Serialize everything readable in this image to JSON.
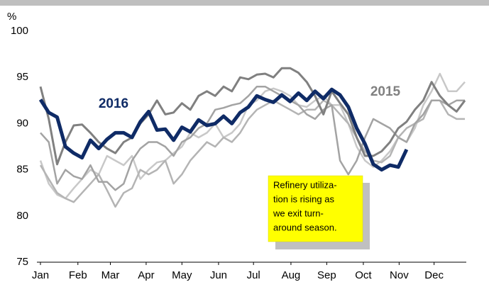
{
  "chart_data": {
    "type": "line",
    "y_unit": "%",
    "x": [
      1,
      2,
      3,
      4,
      5,
      6,
      7,
      8,
      9,
      10,
      11,
      12,
      13,
      14,
      15,
      16,
      17,
      18,
      19,
      20,
      21,
      22,
      23,
      24,
      25,
      26,
      27,
      28,
      29,
      30,
      31,
      32,
      33,
      34,
      35,
      36,
      37,
      38,
      39,
      40,
      41,
      42,
      43,
      44,
      45,
      46,
      47,
      48,
      49,
      50,
      51,
      52
    ],
    "xlim": [
      1,
      52
    ],
    "xticks": [
      {
        "value": 1,
        "label": "Jan"
      },
      {
        "value": 5.5,
        "label": "Feb"
      },
      {
        "value": 9.4,
        "label": "Mar"
      },
      {
        "value": 13.7,
        "label": "Apr"
      },
      {
        "value": 18.0,
        "label": "May"
      },
      {
        "value": 22.4,
        "label": "Jun"
      },
      {
        "value": 26.6,
        "label": "Jul"
      },
      {
        "value": 31.1,
        "label": "Aug"
      },
      {
        "value": 35.4,
        "label": "Sep"
      },
      {
        "value": 39.8,
        "label": "Oct"
      },
      {
        "value": 44.1,
        "label": "Nov"
      },
      {
        "value": 48.3,
        "label": "Dec"
      }
    ],
    "ylim": [
      75,
      100
    ],
    "yticks": [
      75,
      80,
      85,
      90,
      95,
      100
    ],
    "series": [
      {
        "color": "#c8c8c8",
        "values": [
          86,
          83.5,
          82.3,
          81.9,
          83,
          84,
          85,
          84.5,
          86.5,
          86,
          85.5,
          86.5,
          84,
          85,
          85.8,
          86,
          86.8,
          87.5,
          89,
          88.5,
          89,
          90,
          88.5,
          89,
          90,
          92,
          92.5,
          93.5,
          93.8,
          93.5,
          93,
          92,
          91.8,
          92.5,
          93,
          92,
          92,
          90,
          87.5,
          86,
          85.3,
          86,
          87,
          88.5,
          88,
          89.5,
          92,
          93.5,
          95.4,
          93.5,
          93.5,
          94.5
        ]
      },
      {
        "color": "#b4b4b4",
        "values": [
          85.5,
          84,
          82.5,
          81.9,
          81.5,
          82.5,
          83.5,
          84.5,
          82.8,
          81,
          82.5,
          83,
          85,
          84.5,
          85,
          86,
          83.5,
          84.5,
          86,
          87,
          88,
          87.5,
          88.5,
          88,
          89,
          90.5,
          91.5,
          92,
          92.5,
          92,
          91.5,
          91,
          91.5,
          91.5,
          92.5,
          92,
          91,
          90,
          88.5,
          87,
          86,
          85.8,
          86.5,
          88.5,
          89.5,
          90,
          90.5,
          92.5,
          92.5,
          91,
          90.5,
          90.5
        ]
      },
      {
        "color": "#a3a3a3",
        "values": [
          89,
          88,
          83.5,
          85,
          84.3,
          84,
          85.5,
          83.7,
          83.7,
          82.8,
          83.5,
          86,
          87.3,
          88,
          88,
          87.5,
          86.5,
          88,
          88.5,
          89.5,
          90,
          91.5,
          91.7,
          92,
          92.2,
          93,
          94,
          94,
          93.5,
          93,
          92.5,
          92,
          91,
          90.5,
          91.5,
          92,
          86,
          84.5,
          86,
          88.5,
          90.5,
          90,
          89.5,
          88.5,
          88,
          90,
          91,
          92.5,
          92.5,
          92,
          92.5,
          92.5
        ]
      },
      {
        "name": "2015",
        "color": "#808080",
        "values": [
          94.0,
          90.5,
          85.6,
          88.0,
          89.8,
          89.9,
          89.0,
          88.0,
          87.3,
          86.8,
          88.0,
          88.5,
          90.0,
          91.0,
          92.5,
          91.0,
          91.2,
          92.2,
          91.5,
          93.0,
          93.5,
          93.0,
          94.0,
          93.5,
          95.0,
          94.8,
          95.3,
          95.4,
          95.0,
          96.0,
          96.0,
          95.5,
          94.5,
          93.0,
          91.0,
          93.5,
          92.2,
          91.0,
          88.5,
          86.5,
          86.5,
          87.0,
          88.0,
          89.5,
          90.2,
          91.5,
          92.5,
          94.5,
          93.0,
          92.0,
          91.3,
          92.5
        ]
      },
      {
        "name": "2016",
        "color": "#0f2b66",
        "values": [
          92.6,
          91.2,
          90.7,
          87.5,
          86.8,
          86.3,
          88.2,
          87.3,
          88.3,
          89.0,
          89.0,
          88.5,
          90.2,
          91.3,
          89.3,
          89.4,
          88.2,
          89.6,
          89.1,
          90.4,
          89.8,
          90.0,
          90.8,
          90.0,
          91.2,
          91.8,
          93.0,
          92.6,
          92.3,
          93.1,
          92.4,
          93.3,
          92.5,
          93.5,
          92.7,
          93.7,
          93.1,
          91.8,
          89.5,
          87.8,
          85.6,
          85.0,
          85.5,
          85.3,
          87.2,
          null,
          null,
          null,
          null,
          null,
          null,
          null
        ]
      }
    ],
    "annotation": [
      "Refinery utiliza-",
      "tion is rising as",
      "we exit turn-",
      "around season."
    ]
  }
}
